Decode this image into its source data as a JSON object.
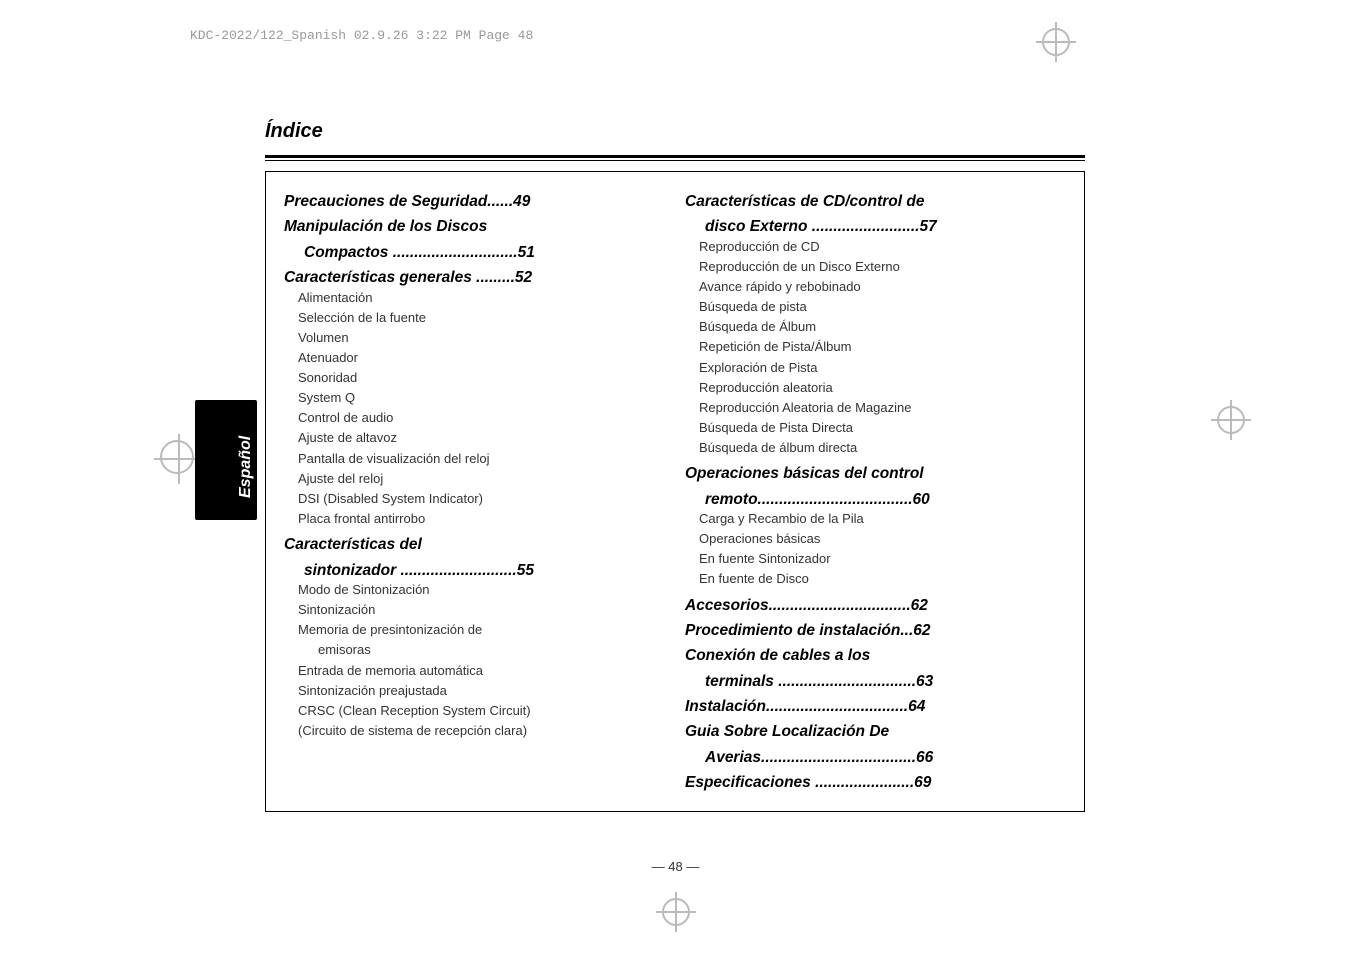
{
  "meta": {
    "header_note": "KDC-2022/122_Spanish  02.9.26  3:22 PM  Page 48",
    "section_title": "Índice",
    "language_tab": "Español",
    "page_number": "— 48 —"
  },
  "left_column": [
    {
      "type": "heading",
      "text": "Precauciones de Seguridad......49"
    },
    {
      "type": "heading",
      "text": "Manipulación de los Discos"
    },
    {
      "type": "heading",
      "indent": true,
      "text": "Compactos .............................51"
    },
    {
      "type": "heading",
      "text": "Características generales .........52"
    },
    {
      "type": "entry",
      "text": "Alimentación"
    },
    {
      "type": "entry",
      "text": "Selección de la fuente"
    },
    {
      "type": "entry",
      "text": "Volumen"
    },
    {
      "type": "entry",
      "text": "Atenuador"
    },
    {
      "type": "entry",
      "text": "Sonoridad"
    },
    {
      "type": "entry",
      "text": "System Q"
    },
    {
      "type": "entry",
      "text": "Control de audio"
    },
    {
      "type": "entry",
      "text": "Ajuste de altavoz"
    },
    {
      "type": "entry",
      "text": "Pantalla de visualización del reloj"
    },
    {
      "type": "entry",
      "text": "Ajuste del reloj"
    },
    {
      "type": "entry",
      "text": "DSI (Disabled System Indicator)"
    },
    {
      "type": "entry",
      "text": "Placa frontal antirrobo"
    },
    {
      "type": "heading",
      "text": "Características del"
    },
    {
      "type": "heading",
      "indent": true,
      "text": "sintonizador ...........................55"
    },
    {
      "type": "entry",
      "text": "Modo de Sintonización"
    },
    {
      "type": "entry",
      "text": "Sintonización"
    },
    {
      "type": "entry",
      "text": "Memoria de presintonización de"
    },
    {
      "type": "entry",
      "sub": true,
      "text": "emisoras"
    },
    {
      "type": "entry",
      "text": "Entrada de memoria automática"
    },
    {
      "type": "entry",
      "text": "Sintonización preajustada"
    },
    {
      "type": "entry",
      "text": "CRSC (Clean Reception System Circuit)"
    },
    {
      "type": "entry",
      "text": "(Circuito de sistema de recepción clara)"
    }
  ],
  "right_column": [
    {
      "type": "heading",
      "text": "Características de CD/control de"
    },
    {
      "type": "heading",
      "indent": true,
      "text": "disco Externo .........................57"
    },
    {
      "type": "entry",
      "text": "Reproducción de CD"
    },
    {
      "type": "entry",
      "text": "Reproducción de un Disco Externo"
    },
    {
      "type": "entry",
      "text": "Avance rápido y rebobinado"
    },
    {
      "type": "entry",
      "text": "Búsqueda de pista"
    },
    {
      "type": "entry",
      "text": "Búsqueda de Álbum"
    },
    {
      "type": "entry",
      "text": "Repetición de Pista/Álbum"
    },
    {
      "type": "entry",
      "text": "Exploración de Pista"
    },
    {
      "type": "entry",
      "text": "Reproducción aleatoria"
    },
    {
      "type": "entry",
      "text": "Reproducción Aleatoria de Magazine"
    },
    {
      "type": "entry",
      "text": "Búsqueda de Pista Directa"
    },
    {
      "type": "entry",
      "text": "Búsqueda de álbum directa"
    },
    {
      "type": "heading",
      "text": "Operaciones básicas del control"
    },
    {
      "type": "heading",
      "indent": true,
      "text": "remoto....................................60"
    },
    {
      "type": "entry",
      "text": "Carga y Recambio de la Pila"
    },
    {
      "type": "entry",
      "text": "Operaciones básicas"
    },
    {
      "type": "entry",
      "text": "En fuente Sintonizador"
    },
    {
      "type": "entry",
      "text": "En fuente de Disco"
    },
    {
      "type": "heading",
      "text": "Accesorios.................................62"
    },
    {
      "type": "heading",
      "text": "Procedimiento de instalación...62"
    },
    {
      "type": "heading",
      "text": "Conexión de cables a los"
    },
    {
      "type": "heading",
      "indent": true,
      "text": "terminals ................................63"
    },
    {
      "type": "heading",
      "text": "Instalación.................................64"
    },
    {
      "type": "heading",
      "text": "Guia Sobre Localización De"
    },
    {
      "type": "heading",
      "indent": true,
      "text": "Averias....................................66"
    },
    {
      "type": "heading",
      "text": "Especificaciones .......................69"
    }
  ]
}
